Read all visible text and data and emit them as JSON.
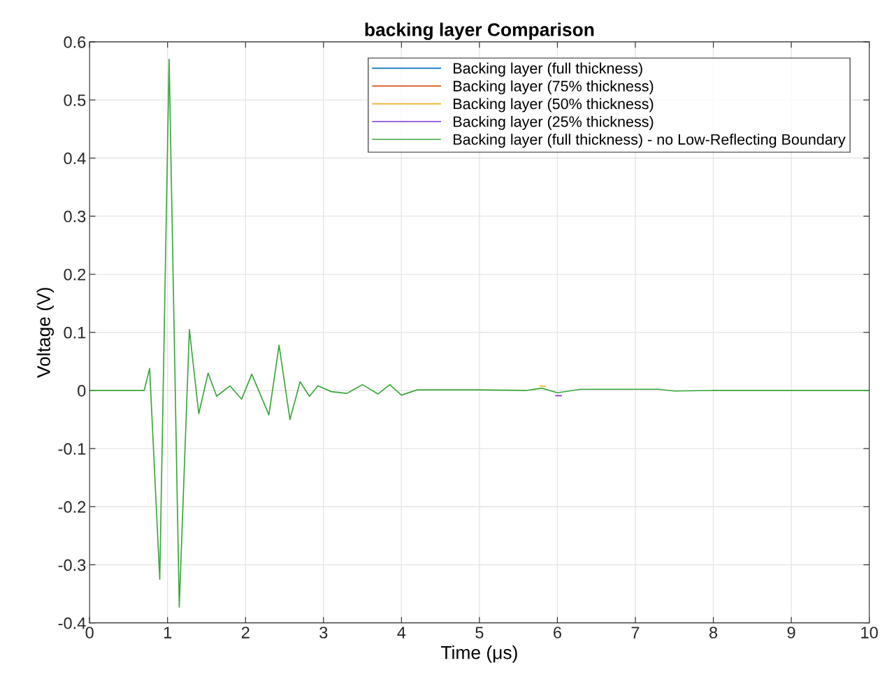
{
  "chart_data": {
    "type": "line",
    "title": "backing layer Comparison",
    "xlabel": "Time (μs)",
    "ylabel": "Voltage (V)",
    "x": [
      0,
      0.7,
      0.77,
      0.9,
      1.02,
      1.15,
      1.28,
      1.4,
      1.52,
      1.63,
      1.8,
      1.95,
      2.08,
      2.3,
      2.43,
      2.57,
      2.7,
      2.82,
      2.93,
      3.1,
      3.3,
      3.5,
      3.7,
      3.85,
      4.0,
      4.2,
      5.0,
      5.6,
      5.8,
      6.0,
      6.3,
      7.3,
      7.5,
      8.0,
      10
    ],
    "series": [
      {
        "name": "Backing layer (full thickness)",
        "color": "#0072bd",
        "values": [
          null,
          null,
          null,
          null,
          null,
          null,
          null,
          null,
          null,
          null,
          null,
          null,
          null,
          null,
          null,
          null,
          null,
          null,
          null,
          null,
          null,
          null,
          null,
          null,
          null,
          null,
          null,
          null,
          null,
          null,
          null,
          null,
          null,
          null,
          null
        ]
      },
      {
        "name": "Backing layer (75% thickness)",
        "color": "#d95319",
        "values": [
          null,
          null,
          null,
          null,
          null,
          null,
          null,
          null,
          null,
          null,
          null,
          null,
          null,
          null,
          null,
          null,
          null,
          null,
          null,
          null,
          null,
          null,
          null,
          null,
          null,
          null,
          null,
          null,
          null,
          null,
          null,
          null,
          null,
          null,
          null
        ]
      },
      {
        "name": "Backing layer (50% thickness)",
        "color": "#edb120",
        "x": [
          5.78,
          5.85
        ],
        "values": [
          0.008,
          0.007
        ]
      },
      {
        "name": "Backing layer (25% thickness)",
        "color": "#7e2fde",
        "x": [
          5.98,
          6.05
        ],
        "values": [
          -0.009,
          -0.009
        ]
      },
      {
        "name": "Backing layer (full thickness) - no Low-Reflecting Boundary",
        "color": "#3aa63a",
        "values": [
          0,
          0,
          0.038,
          -0.325,
          0.57,
          -0.373,
          0.105,
          -0.04,
          0.03,
          -0.01,
          0.008,
          -0.015,
          0.028,
          -0.042,
          0.078,
          -0.05,
          0.015,
          -0.01,
          0.008,
          -0.002,
          -0.005,
          0.01,
          -0.006,
          0.01,
          -0.008,
          0.001,
          0.001,
          0,
          0.004,
          -0.004,
          0.002,
          0.002,
          -0.001,
          0,
          0
        ]
      }
    ],
    "xlim": [
      0,
      10
    ],
    "ylim": [
      -0.4,
      0.6
    ],
    "xticks": [
      0,
      1,
      2,
      3,
      4,
      5,
      6,
      7,
      8,
      9,
      10
    ],
    "yticks": [
      -0.4,
      -0.3,
      -0.2,
      -0.1,
      0,
      0.1,
      0.2,
      0.3,
      0.4,
      0.5,
      0.6
    ],
    "grid": true,
    "legend": "top right",
    "line_style": "solid",
    "marker": "none"
  }
}
